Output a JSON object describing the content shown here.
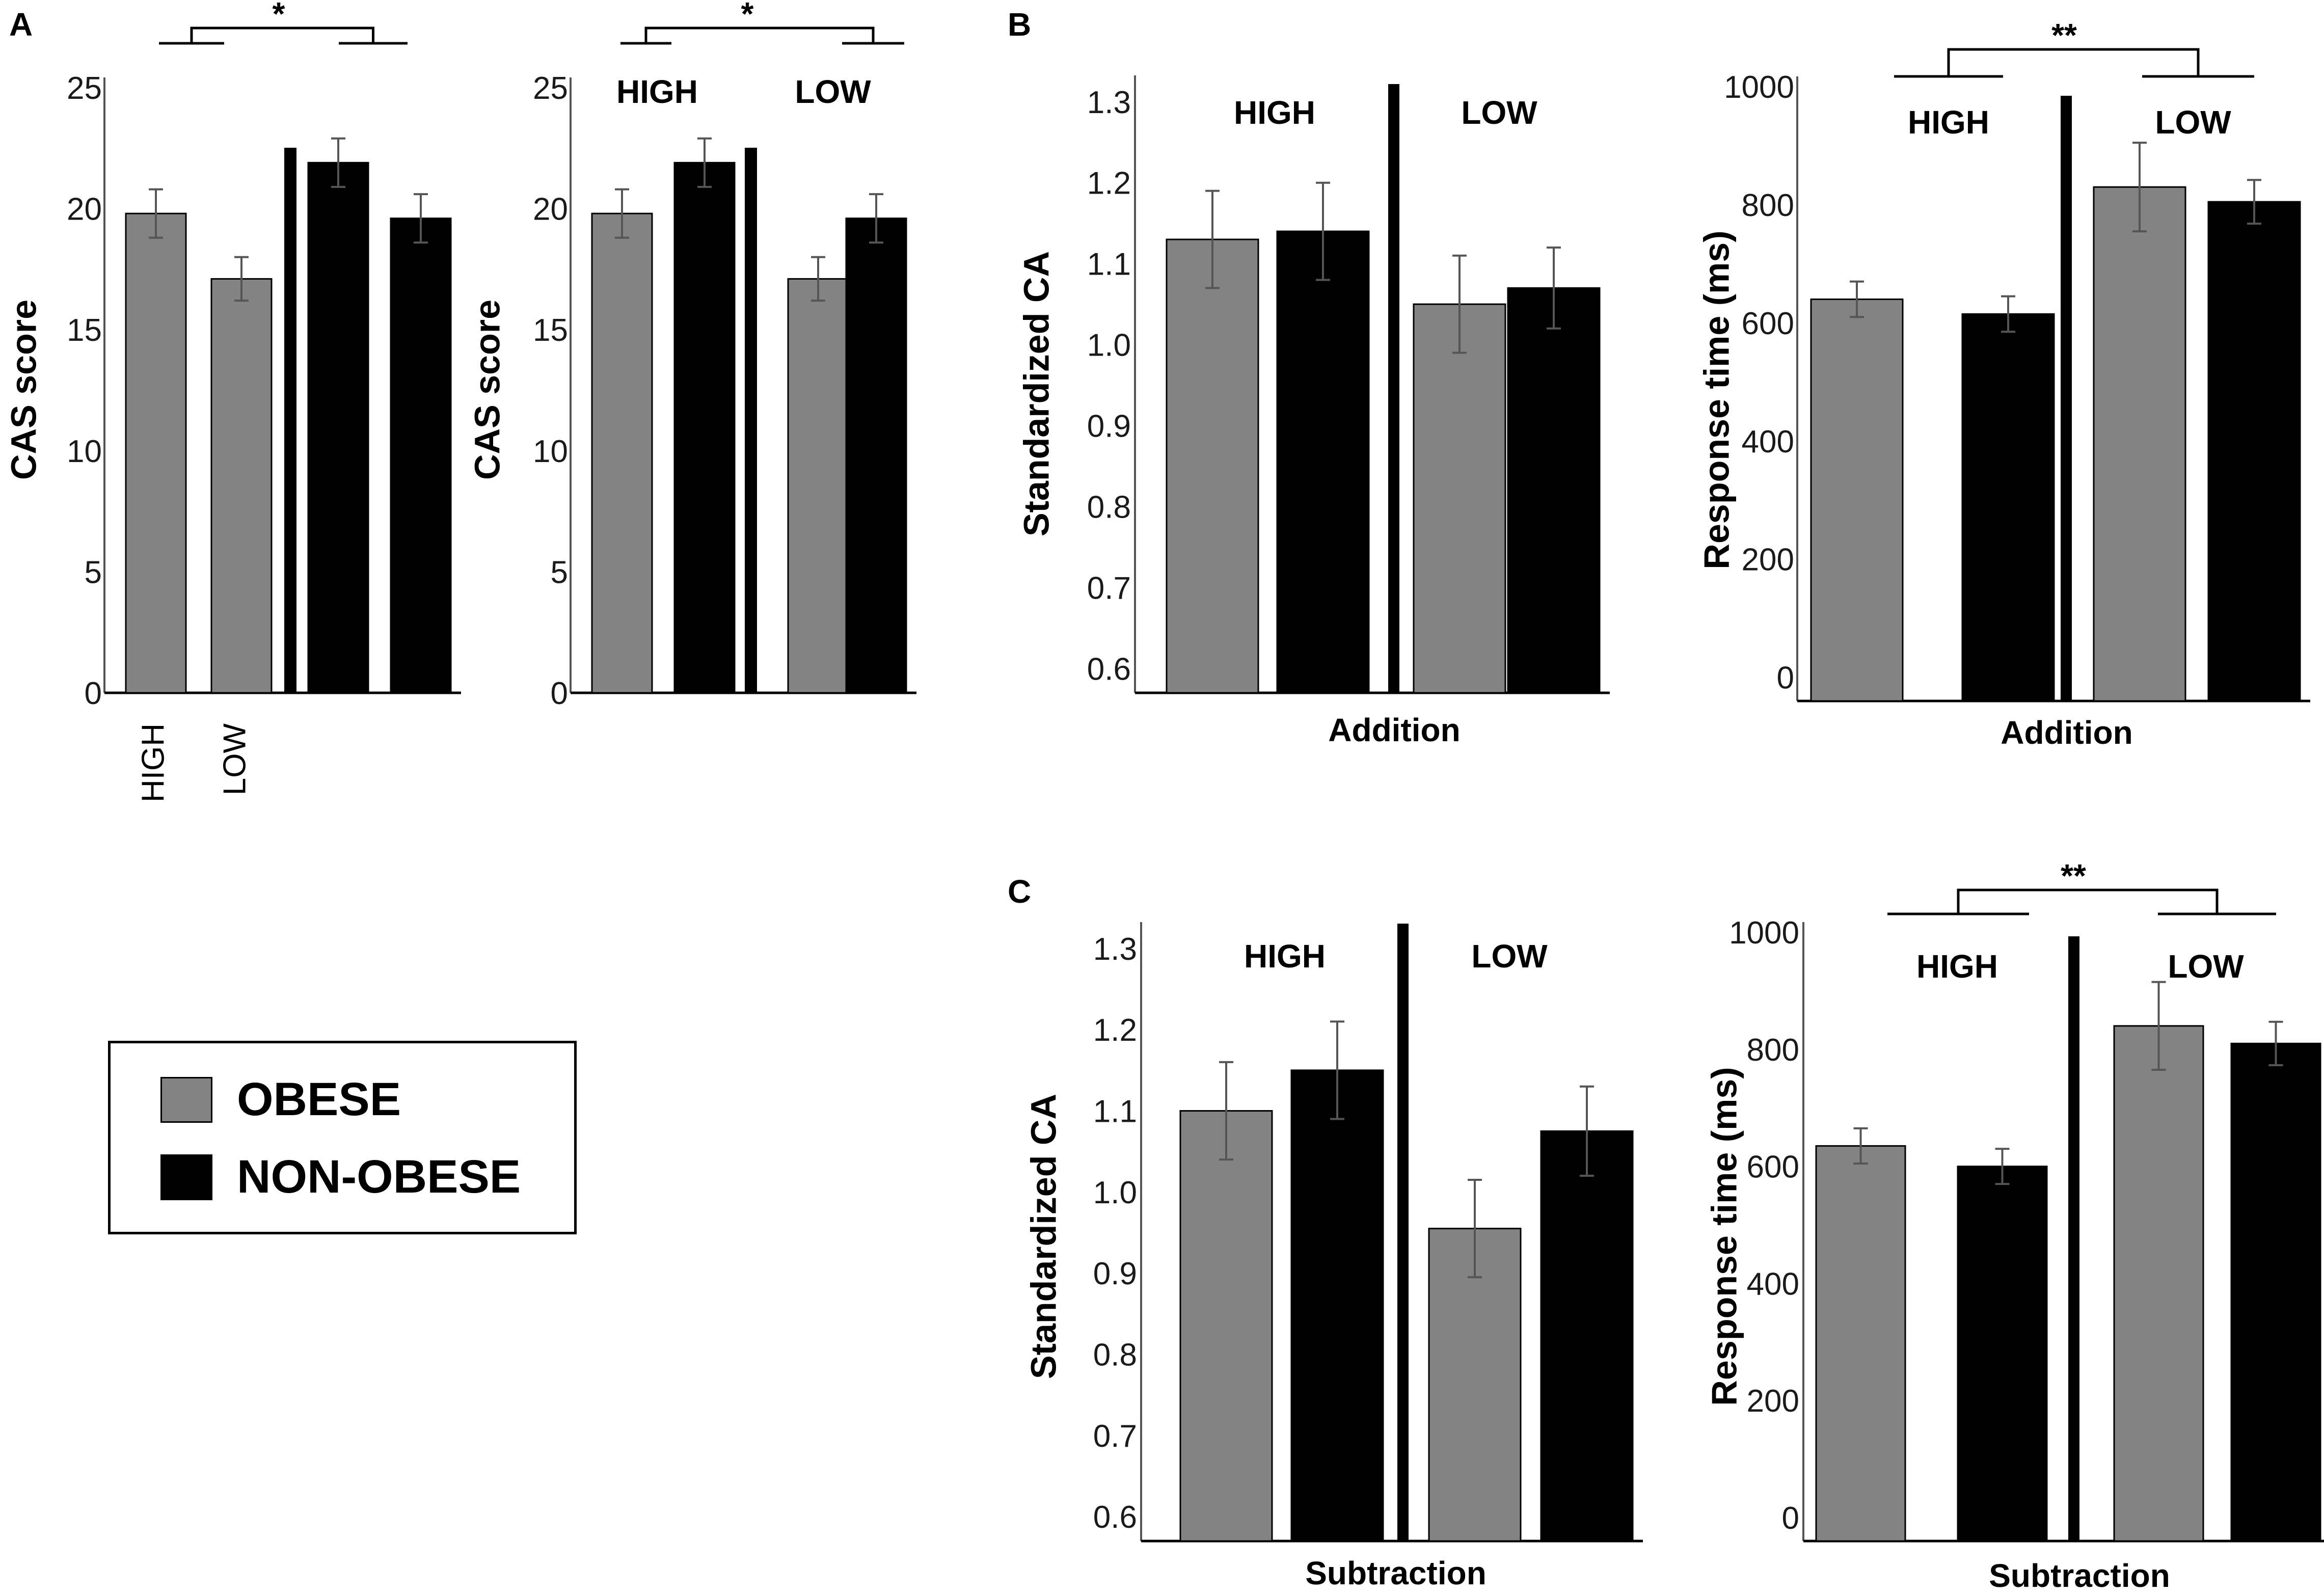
{
  "colors": {
    "obese": "#838383",
    "non_obese": "#000000",
    "axis": "#000000",
    "tick_text": "#1a1a1a"
  },
  "panel_letters": [
    "A",
    "B",
    "C"
  ],
  "legend": {
    "items": [
      {
        "label": "OBESE",
        "color": "#838383"
      },
      {
        "label": "NON-OBESE",
        "color": "#000000"
      }
    ]
  },
  "chart_data": [
    {
      "id": "A1",
      "panel": "A",
      "type": "bar",
      "ylabel": "CAS  score",
      "ylim": [
        0,
        25
      ],
      "yticks": [
        0,
        5,
        10,
        15,
        20,
        25
      ],
      "group_labels": [],
      "xlabel": "",
      "category_labels": [
        "HIGH",
        "LOW"
      ],
      "bars": [
        {
          "group": "OBESE",
          "category": "HIGH",
          "value": 19.8,
          "error": 1.0,
          "color": "#838383"
        },
        {
          "group": "OBESE",
          "category": "LOW",
          "value": 17.1,
          "error": 0.9,
          "color": "#838383"
        },
        {
          "group": "NON-OBESE",
          "category": "HIGH",
          "value": 21.9,
          "error": 1.0,
          "color": "#000000"
        },
        {
          "group": "NON-OBESE",
          "category": "LOW",
          "value": 19.6,
          "error": 1.0,
          "color": "#000000"
        }
      ],
      "significance": "*"
    },
    {
      "id": "A2",
      "panel": "A",
      "type": "bar",
      "ylabel": "CAS  score",
      "ylim": [
        0,
        25
      ],
      "yticks": [
        0,
        5,
        10,
        15,
        20,
        25
      ],
      "group_labels": [
        "HIGH",
        "LOW"
      ],
      "xlabel": "",
      "bars": [
        {
          "group": "HIGH",
          "series": "OBESE",
          "value": 19.8,
          "error": 1.0,
          "color": "#838383"
        },
        {
          "group": "HIGH",
          "series": "NON-OBESE",
          "value": 21.9,
          "error": 1.0,
          "color": "#000000"
        },
        {
          "group": "LOW",
          "series": "OBESE",
          "value": 17.1,
          "error": 0.9,
          "color": "#838383"
        },
        {
          "group": "LOW",
          "series": "NON-OBESE",
          "value": 19.6,
          "error": 1.0,
          "color": "#000000"
        }
      ],
      "significance": "*"
    },
    {
      "id": "B1",
      "panel": "B",
      "type": "bar",
      "ylabel": "Standardized CA",
      "ylim": [
        0.57,
        1.32
      ],
      "yticks": [
        0.6,
        0.7,
        0.8,
        0.9,
        1.0,
        1.1,
        1.2,
        1.3
      ],
      "tick_labels": [
        "0.6",
        "0.7",
        "0.8",
        "0.9",
        "1.0",
        "1.1",
        "1.2",
        "1.3"
      ],
      "group_labels": [
        "HIGH",
        "LOW"
      ],
      "xlabel": "Addition",
      "bars": [
        {
          "group": "HIGH",
          "series": "OBESE",
          "value": 1.13,
          "error": 0.06,
          "color": "#838383"
        },
        {
          "group": "HIGH",
          "series": "NON-OBESE",
          "value": 1.14,
          "error": 0.06,
          "color": "#000000"
        },
        {
          "group": "LOW",
          "series": "OBESE",
          "value": 1.05,
          "error": 0.06,
          "color": "#838383"
        },
        {
          "group": "LOW",
          "series": "NON-OBESE",
          "value": 1.07,
          "error": 0.05,
          "color": "#000000"
        }
      ],
      "significance": ""
    },
    {
      "id": "B2",
      "panel": "B",
      "type": "bar",
      "ylabel": "Response time (ms)",
      "ylim": [
        -40,
        1000
      ],
      "yticks": [
        0,
        200,
        400,
        600,
        800,
        1000
      ],
      "group_labels": [
        "HIGH",
        "LOW"
      ],
      "xlabel": "Addition",
      "bars": [
        {
          "group": "HIGH",
          "series": "OBESE",
          "value": 640,
          "error": 30,
          "color": "#838383"
        },
        {
          "group": "HIGH",
          "series": "NON-OBESE",
          "value": 615,
          "error": 30,
          "color": "#000000"
        },
        {
          "group": "LOW",
          "series": "OBESE",
          "value": 830,
          "error": 75,
          "color": "#838383"
        },
        {
          "group": "LOW",
          "series": "NON-OBESE",
          "value": 805,
          "error": 37,
          "color": "#000000"
        }
      ],
      "significance": "**"
    },
    {
      "id": "C1",
      "panel": "C",
      "type": "bar",
      "ylabel": "Standardized CA",
      "ylim": [
        0.57,
        1.32
      ],
      "yticks": [
        0.6,
        0.7,
        0.8,
        0.9,
        1.0,
        1.1,
        1.2,
        1.3
      ],
      "tick_labels": [
        "0.6",
        "0.7",
        "0.8",
        "0.9",
        "1.0",
        "1.1",
        "1.2",
        "1.3"
      ],
      "group_labels": [
        "HIGH",
        "LOW"
      ],
      "xlabel": "Subtraction",
      "bars": [
        {
          "group": "HIGH",
          "series": "OBESE",
          "value": 1.1,
          "error": 0.06,
          "color": "#838383"
        },
        {
          "group": "HIGH",
          "series": "NON-OBESE",
          "value": 1.15,
          "error": 0.06,
          "color": "#000000"
        },
        {
          "group": "LOW",
          "series": "OBESE",
          "value": 0.955,
          "error": 0.06,
          "color": "#838383"
        },
        {
          "group": "LOW",
          "series": "NON-OBESE",
          "value": 1.075,
          "error": 0.055,
          "color": "#000000"
        }
      ],
      "significance": ""
    },
    {
      "id": "C2",
      "panel": "C",
      "type": "bar",
      "ylabel": "Response time (ms)",
      "ylim": [
        -40,
        1000
      ],
      "yticks": [
        0,
        200,
        400,
        600,
        800,
        1000
      ],
      "group_labels": [
        "HIGH",
        "LOW"
      ],
      "xlabel": "Subtraction",
      "bars": [
        {
          "group": "HIGH",
          "series": "OBESE",
          "value": 635,
          "error": 30,
          "color": "#838383"
        },
        {
          "group": "HIGH",
          "series": "NON-OBESE",
          "value": 600,
          "error": 30,
          "color": "#000000"
        },
        {
          "group": "LOW",
          "series": "OBESE",
          "value": 840,
          "error": 75,
          "color": "#838383"
        },
        {
          "group": "LOW",
          "series": "NON-OBESE",
          "value": 810,
          "error": 37,
          "color": "#000000"
        }
      ],
      "significance": "**"
    }
  ]
}
